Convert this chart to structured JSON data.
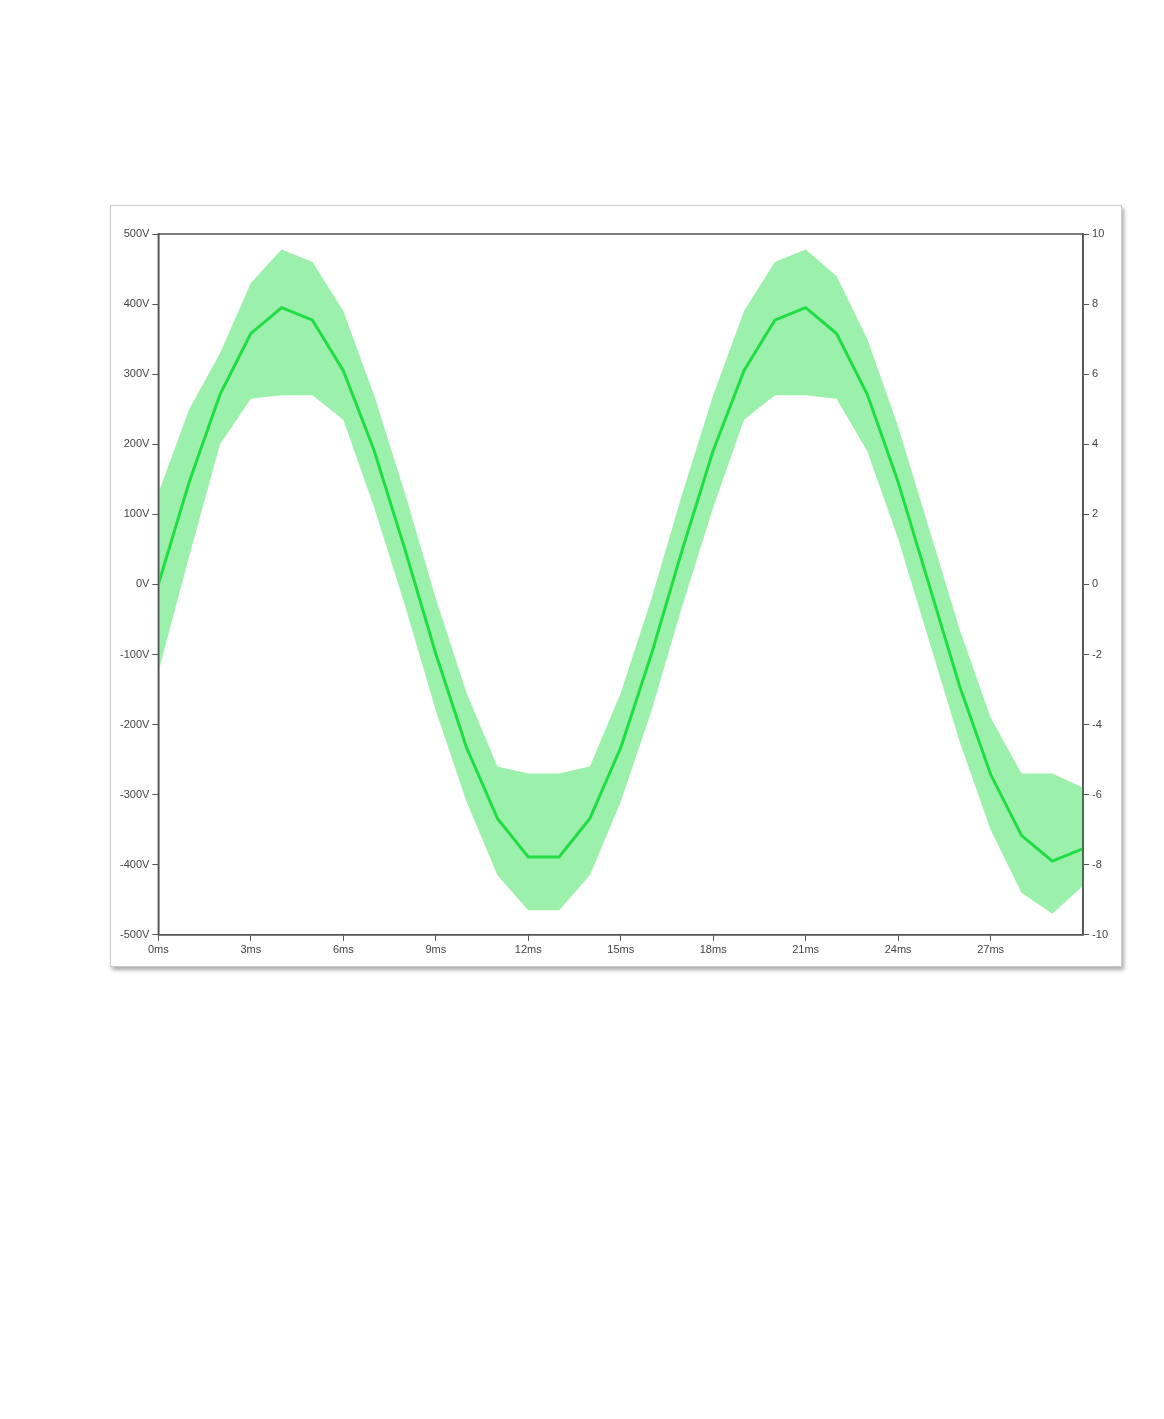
{
  "chart_data": {
    "type": "line",
    "x": [
      0,
      1,
      2,
      3,
      4,
      5,
      6,
      7,
      8,
      9,
      10,
      11,
      12,
      13,
      14,
      15,
      16,
      17,
      18,
      19,
      20,
      21,
      22,
      23,
      24,
      25,
      26,
      27,
      28,
      29,
      30
    ],
    "series": [
      {
        "color": "#22dd44",
        "values": [
          0,
          146,
          271,
          358,
          395,
          377,
          305,
          191,
          50,
          -99,
          -233,
          -334,
          -389,
          -389,
          -334,
          -233,
          -99,
          50,
          191,
          305,
          377,
          395,
          358,
          271,
          146,
          0,
          -146,
          -271,
          -358,
          -395,
          -377
        ],
        "upper": [
          130,
          250,
          330,
          430,
          478,
          460,
          390,
          270,
          130,
          -20,
          -155,
          -260,
          -270,
          -270,
          -260,
          -155,
          -20,
          130,
          270,
          390,
          460,
          478,
          440,
          350,
          225,
          80,
          -65,
          -190,
          -270,
          -270,
          -290
        ],
        "lower": [
          -125,
          40,
          200,
          265,
          270,
          270,
          235,
          110,
          -30,
          -180,
          -310,
          -415,
          -465,
          -465,
          -415,
          -310,
          -180,
          -30,
          110,
          235,
          270,
          270,
          265,
          190,
          65,
          -80,
          -225,
          -350,
          -440,
          -470,
          -430
        ]
      }
    ],
    "xlim": [
      0,
      30
    ],
    "xticks": [
      {
        "value": 0,
        "label": "0ms"
      },
      {
        "value": 3,
        "label": "3ms"
      },
      {
        "value": 6,
        "label": "6ms"
      },
      {
        "value": 9,
        "label": "9ms"
      },
      {
        "value": 12,
        "label": "12ms"
      },
      {
        "value": 15,
        "label": "15ms"
      },
      {
        "value": 18,
        "label": "18ms"
      },
      {
        "value": 21,
        "label": "21ms"
      },
      {
        "value": 24,
        "label": "24ms"
      },
      {
        "value": 27,
        "label": "27ms"
      }
    ],
    "ylim": [
      -500,
      500
    ],
    "yticks": [
      {
        "value": -500,
        "label": "-500V"
      },
      {
        "value": -400,
        "label": "-400V"
      },
      {
        "value": -300,
        "label": "-300V"
      },
      {
        "value": -200,
        "label": "-200V"
      },
      {
        "value": -100,
        "label": "-100V"
      },
      {
        "value": 0,
        "label": "0V"
      },
      {
        "value": 100,
        "label": "100V"
      },
      {
        "value": 200,
        "label": "200V"
      },
      {
        "value": 300,
        "label": "300V"
      },
      {
        "value": 400,
        "label": "400V"
      },
      {
        "value": 500,
        "label": "500V"
      }
    ],
    "y2lim": [
      -10,
      10
    ],
    "y2ticks": [
      -10,
      -8,
      -6,
      -4,
      -2,
      0,
      2,
      4,
      6,
      8,
      10
    ],
    "grid": false,
    "legend": false,
    "marker": "none",
    "line_style": "solid"
  }
}
